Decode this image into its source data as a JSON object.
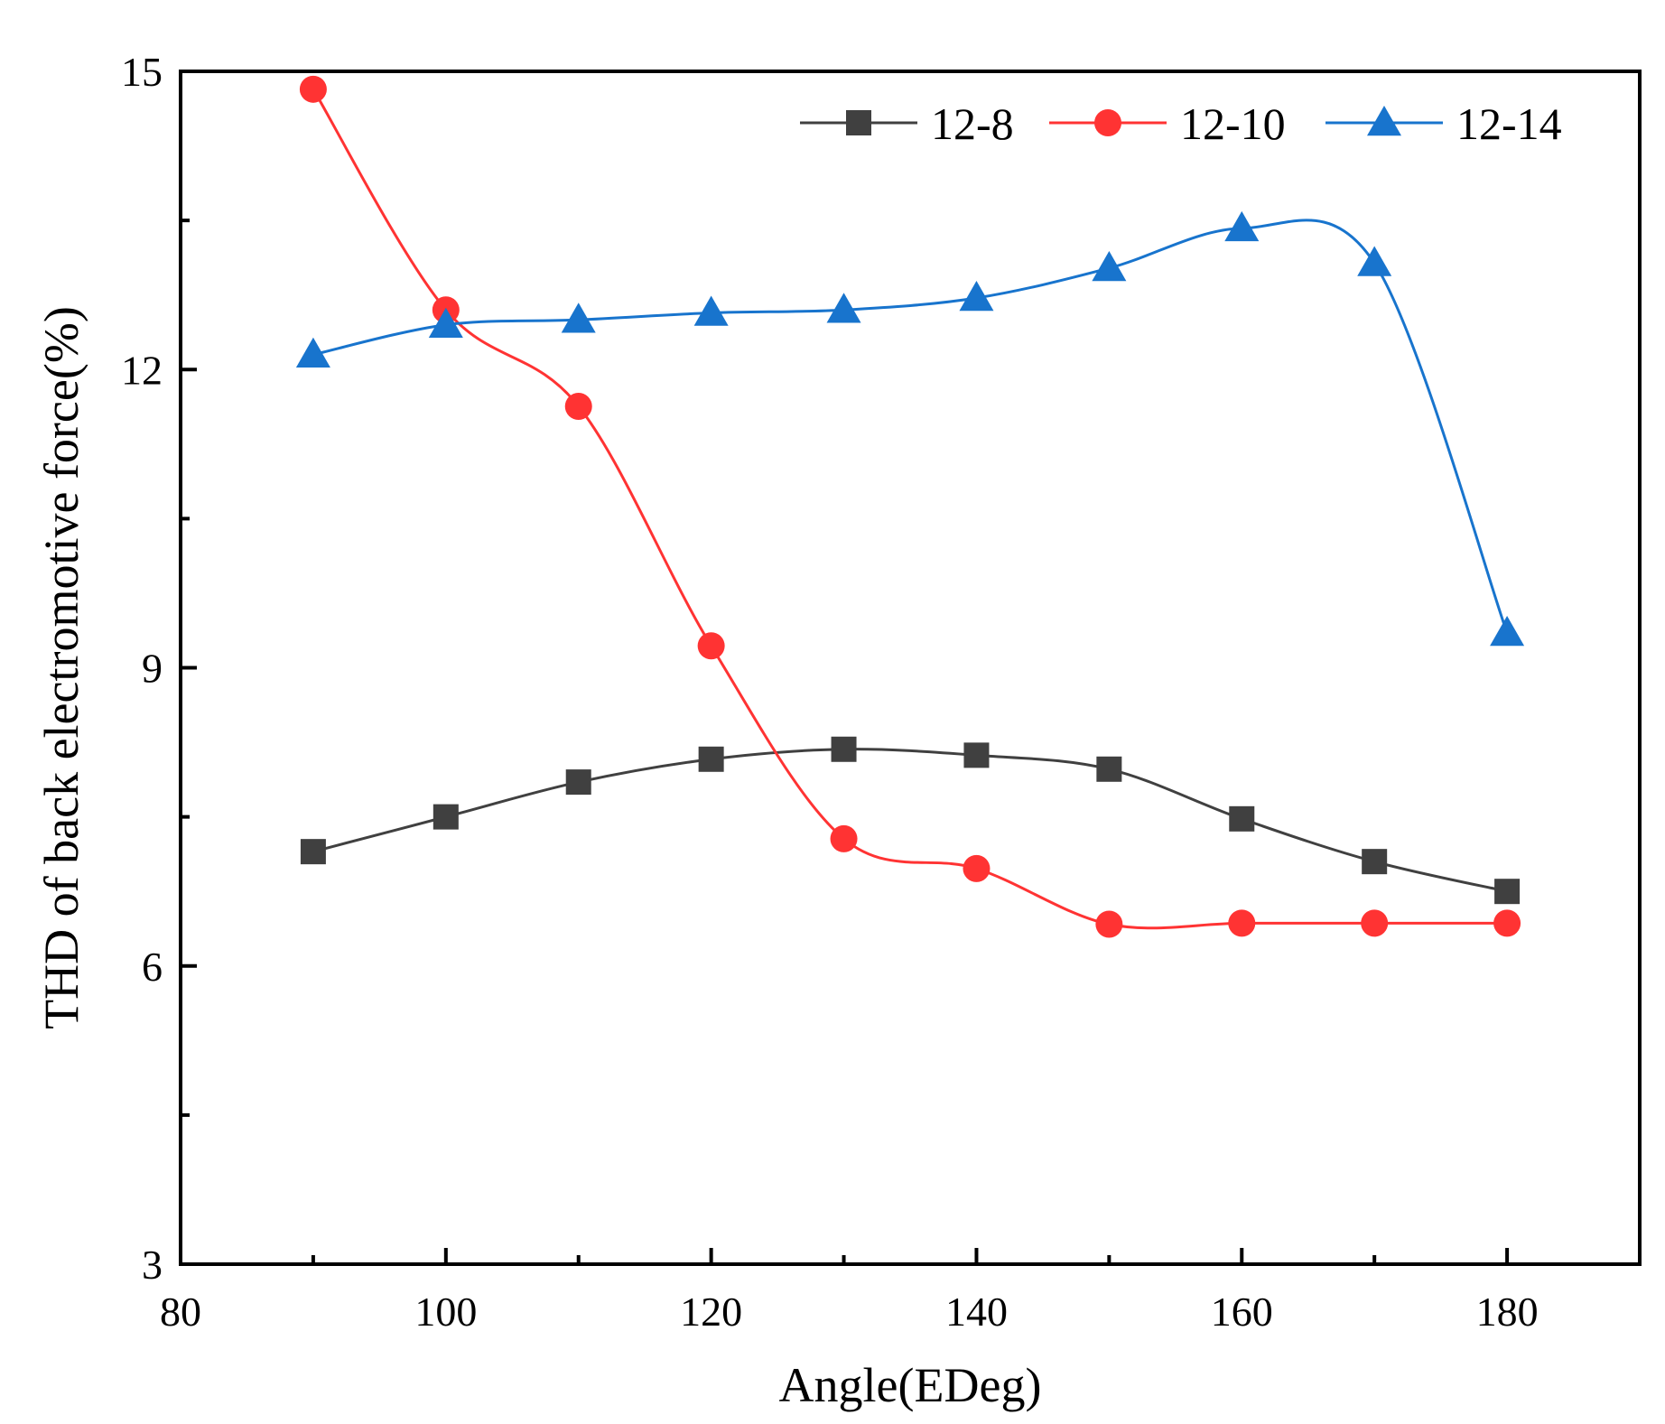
{
  "chart_data": {
    "type": "line",
    "title": "",
    "xlabel": "Angle(EDeg)",
    "ylabel": "THD of back electromotive force(%)",
    "xlim": [
      80,
      190
    ],
    "ylim": [
      3,
      15
    ],
    "x_ticks": [
      80,
      100,
      120,
      140,
      160,
      180
    ],
    "y_ticks": [
      3,
      6,
      9,
      12,
      15
    ],
    "grid": false,
    "legend_position": "top-right",
    "x": [
      90,
      100,
      110,
      120,
      130,
      140,
      150,
      160,
      170,
      180
    ],
    "series": [
      {
        "name": "12-8",
        "color": "#404040",
        "marker": "square",
        "values": [
          7.15,
          7.5,
          7.85,
          8.08,
          8.18,
          8.12,
          7.98,
          7.48,
          7.05,
          6.75
        ]
      },
      {
        "name": "12-10",
        "color": "#ff3333",
        "marker": "circle",
        "values": [
          14.82,
          12.6,
          11.63,
          9.22,
          7.28,
          6.98,
          6.42,
          6.43,
          6.43,
          6.43
        ]
      },
      {
        "name": "12-14",
        "color": "#1874cd",
        "marker": "triangle",
        "values": [
          12.15,
          12.45,
          12.5,
          12.57,
          12.6,
          12.72,
          13.02,
          13.42,
          13.07,
          9.35
        ]
      }
    ]
  }
}
